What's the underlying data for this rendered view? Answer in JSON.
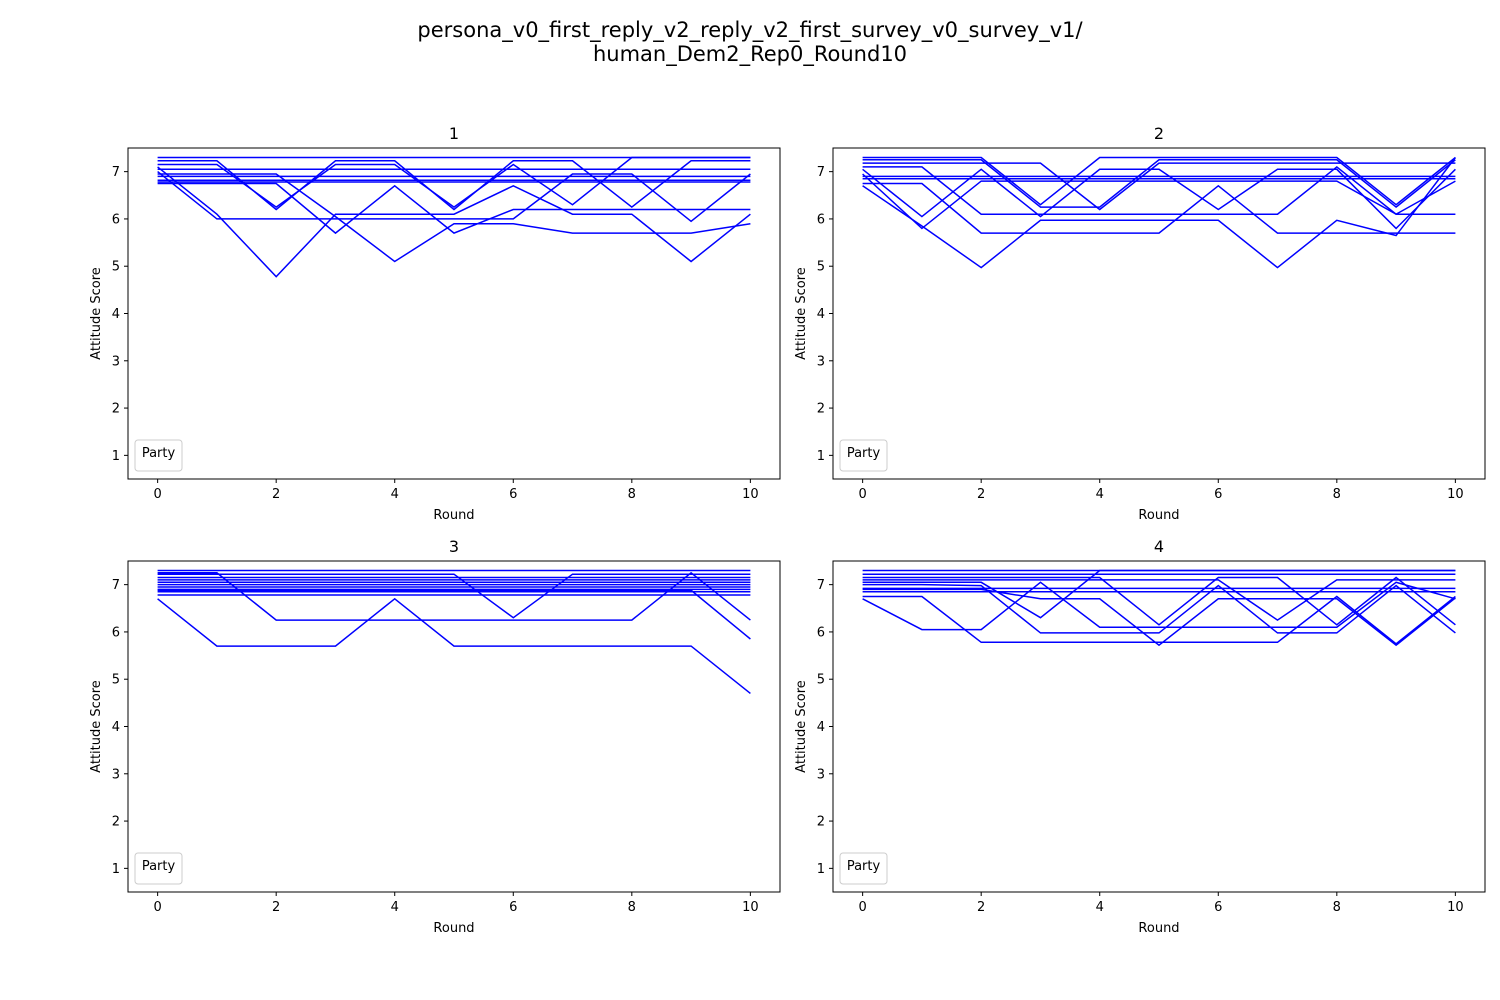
{
  "figure": {
    "title_line1": "persona_v0_first_reply_v2_reply_v2_first_survey_v0_survey_v1/",
    "title_line2": "human_Dem2_Rep0_Round10"
  },
  "colors": {
    "series": "#0000ff",
    "axis": "#000000",
    "legend_border": "#cccccc"
  },
  "chart_data": [
    {
      "type": "line",
      "title": "1",
      "xlabel": "Round",
      "ylabel": "Attitude Score",
      "xlim": [
        -0.5,
        10.5
      ],
      "ylim": [
        0.5,
        7.5
      ],
      "xticks": [
        0,
        2,
        4,
        6,
        8,
        10
      ],
      "yticks": [
        1,
        2,
        3,
        4,
        5,
        6,
        7
      ],
      "grid": false,
      "legend": {
        "title": "Party",
        "entries": [],
        "placement": "lower-left"
      },
      "x": [
        0,
        1,
        2,
        3,
        4,
        5,
        6,
        7,
        8,
        9,
        10
      ],
      "series": [
        {
          "values": [
            7.3,
            7.3,
            7.3,
            7.3,
            7.3,
            7.3,
            7.3,
            7.3,
            7.3,
            7.3,
            7.3
          ]
        },
        {
          "values": [
            7.23,
            7.23,
            6.2,
            7.23,
            7.23,
            6.2,
            7.23,
            7.23,
            6.25,
            7.23,
            7.23
          ]
        },
        {
          "values": [
            7.15,
            7.15,
            6.25,
            7.15,
            7.15,
            6.25,
            7.15,
            6.3,
            7.3,
            7.3,
            7.3
          ]
        },
        {
          "values": [
            7.05,
            7.05,
            7.05,
            7.05,
            7.05,
            7.05,
            7.05,
            7.05,
            7.05,
            7.05,
            7.05
          ]
        },
        {
          "values": [
            6.9,
            6.9,
            6.9,
            6.9,
            6.9,
            6.9,
            6.9,
            6.9,
            6.9,
            6.9,
            6.9
          ]
        },
        {
          "values": [
            6.82,
            6.82,
            6.82,
            6.82,
            6.82,
            6.82,
            6.82,
            6.82,
            6.82,
            6.82,
            6.82
          ]
        },
        {
          "values": [
            6.78,
            6.78,
            6.78,
            6.78,
            6.78,
            6.78,
            6.78,
            6.78,
            6.78,
            6.78,
            6.78
          ]
        },
        {
          "values": [
            7.0,
            6.0,
            6.0,
            6.0,
            6.0,
            6.0,
            6.0,
            6.95,
            6.95,
            5.95,
            6.95
          ]
        },
        {
          "values": [
            7.1,
            6.1,
            4.78,
            6.1,
            6.1,
            6.1,
            6.7,
            6.1,
            6.1,
            5.1,
            6.1
          ]
        },
        {
          "values": [
            6.75,
            6.75,
            6.75,
            5.7,
            6.7,
            5.7,
            6.2,
            6.2,
            6.2,
            6.2,
            6.2
          ]
        },
        {
          "values": [
            6.95,
            6.95,
            6.95,
            6.05,
            5.1,
            5.9,
            5.9,
            5.7,
            5.7,
            5.7,
            5.9
          ]
        }
      ]
    },
    {
      "type": "line",
      "title": "2",
      "xlabel": "Round",
      "ylabel": "Attitude Score",
      "xlim": [
        -0.5,
        10.5
      ],
      "ylim": [
        0.5,
        7.5
      ],
      "xticks": [
        0,
        2,
        4,
        6,
        8,
        10
      ],
      "yticks": [
        1,
        2,
        3,
        4,
        5,
        6,
        7
      ],
      "grid": false,
      "legend": {
        "title": "Party",
        "entries": [],
        "placement": "lower-left"
      },
      "x": [
        0,
        1,
        2,
        3,
        4,
        5,
        6,
        7,
        8,
        9,
        10
      ],
      "series": [
        {
          "values": [
            7.3,
            7.3,
            7.3,
            6.3,
            7.3,
            7.3,
            7.3,
            7.3,
            7.3,
            6.3,
            7.3
          ]
        },
        {
          "values": [
            7.25,
            7.25,
            7.25,
            6.25,
            6.25,
            7.25,
            7.25,
            7.25,
            7.25,
            6.25,
            7.25
          ]
        },
        {
          "values": [
            7.18,
            7.18,
            7.18,
            7.18,
            6.2,
            7.18,
            7.18,
            7.18,
            7.18,
            7.18,
            7.18
          ]
        },
        {
          "values": [
            7.1,
            7.1,
            6.1,
            6.1,
            6.1,
            6.1,
            6.1,
            6.1,
            7.1,
            6.1,
            6.1
          ]
        },
        {
          "values": [
            6.9,
            6.9,
            6.9,
            6.9,
            6.9,
            6.9,
            6.9,
            6.9,
            6.9,
            6.9,
            6.9
          ]
        },
        {
          "values": [
            6.85,
            6.85,
            6.85,
            6.85,
            6.85,
            6.85,
            6.85,
            6.85,
            6.85,
            6.85,
            6.85
          ]
        },
        {
          "values": [
            7.05,
            6.05,
            7.05,
            6.05,
            7.05,
            7.05,
            6.2,
            7.05,
            7.05,
            5.8,
            7.05
          ]
        },
        {
          "values": [
            6.95,
            5.8,
            6.8,
            6.8,
            6.8,
            6.8,
            6.8,
            6.8,
            6.8,
            6.1,
            6.8
          ]
        },
        {
          "values": [
            6.75,
            6.75,
            5.7,
            5.7,
            5.7,
            5.7,
            6.7,
            5.7,
            5.7,
            5.7,
            5.7
          ]
        },
        {
          "values": [
            6.7,
            5.85,
            4.97,
            5.97,
            5.97,
            5.97,
            5.97,
            4.97,
            5.97,
            5.65,
            7.3
          ]
        }
      ]
    },
    {
      "type": "line",
      "title": "3",
      "xlabel": "Round",
      "ylabel": "Attitude Score",
      "xlim": [
        -0.5,
        10.5
      ],
      "ylim": [
        0.5,
        7.5
      ],
      "xticks": [
        0,
        2,
        4,
        6,
        8,
        10
      ],
      "yticks": [
        1,
        2,
        3,
        4,
        5,
        6,
        7
      ],
      "grid": false,
      "legend": {
        "title": "Party",
        "entries": [],
        "placement": "lower-left"
      },
      "x": [
        0,
        1,
        2,
        3,
        4,
        5,
        6,
        7,
        8,
        9,
        10
      ],
      "series": [
        {
          "values": [
            7.3,
            7.3,
            7.3,
            7.3,
            7.3,
            7.3,
            7.3,
            7.3,
            7.3,
            7.3,
            7.3
          ]
        },
        {
          "values": [
            7.22,
            7.22,
            7.22,
            7.22,
            7.22,
            7.22,
            6.3,
            7.22,
            7.22,
            7.22,
            7.22
          ]
        },
        {
          "values": [
            7.15,
            7.15,
            7.15,
            7.15,
            7.15,
            7.15,
            7.15,
            7.15,
            7.15,
            7.15,
            7.15
          ]
        },
        {
          "values": [
            7.1,
            7.1,
            7.1,
            7.1,
            7.1,
            7.1,
            7.1,
            7.1,
            7.1,
            7.1,
            7.1
          ]
        },
        {
          "values": [
            7.05,
            7.05,
            7.05,
            7.05,
            7.05,
            7.05,
            7.05,
            7.05,
            7.05,
            7.05,
            7.05
          ]
        },
        {
          "values": [
            7.0,
            7.0,
            7.0,
            7.0,
            7.0,
            7.0,
            7.0,
            7.0,
            7.0,
            7.0,
            7.0
          ]
        },
        {
          "values": [
            6.95,
            6.95,
            6.95,
            6.95,
            6.95,
            6.95,
            6.95,
            6.95,
            6.95,
            6.95,
            6.95
          ]
        },
        {
          "values": [
            6.9,
            6.9,
            6.9,
            6.9,
            6.9,
            6.9,
            6.9,
            6.9,
            6.9,
            6.9,
            6.9
          ]
        },
        {
          "values": [
            6.85,
            6.85,
            6.85,
            6.85,
            6.85,
            6.85,
            6.85,
            6.85,
            6.85,
            6.85,
            6.85
          ]
        },
        {
          "values": [
            6.78,
            6.78,
            6.78,
            6.78,
            6.78,
            6.78,
            6.78,
            6.78,
            6.78,
            6.78,
            6.78
          ]
        },
        {
          "values": [
            7.25,
            7.25,
            6.25,
            6.25,
            6.25,
            6.25,
            6.25,
            6.25,
            6.25,
            7.25,
            6.25
          ]
        },
        {
          "values": [
            6.88,
            6.88,
            6.88,
            6.88,
            6.88,
            6.88,
            6.88,
            6.88,
            6.88,
            6.88,
            5.85
          ]
        },
        {
          "values": [
            6.7,
            5.7,
            5.7,
            5.7,
            6.7,
            5.7,
            5.7,
            5.7,
            5.7,
            5.7,
            4.7
          ]
        }
      ]
    },
    {
      "type": "line",
      "title": "4",
      "xlabel": "Round",
      "ylabel": "Attitude Score",
      "xlim": [
        -0.5,
        10.5
      ],
      "ylim": [
        0.5,
        7.5
      ],
      "xticks": [
        0,
        2,
        4,
        6,
        8,
        10
      ],
      "yticks": [
        1,
        2,
        3,
        4,
        5,
        6,
        7
      ],
      "grid": false,
      "legend": {
        "title": "Party",
        "entries": [],
        "placement": "lower-left"
      },
      "x": [
        0,
        1,
        2,
        3,
        4,
        5,
        6,
        7,
        8,
        9,
        10
      ],
      "series": [
        {
          "values": [
            7.3,
            7.3,
            7.3,
            7.3,
            7.3,
            7.3,
            7.3,
            7.3,
            7.3,
            7.3,
            7.3
          ]
        },
        {
          "values": [
            7.22,
            7.22,
            7.22,
            7.22,
            7.22,
            7.22,
            7.22,
            7.22,
            7.22,
            7.22,
            7.22
          ]
        },
        {
          "values": [
            7.15,
            7.15,
            7.15,
            7.15,
            7.15,
            6.15,
            7.15,
            7.15,
            6.15,
            7.15,
            6.15
          ]
        },
        {
          "values": [
            7.1,
            7.1,
            7.1,
            7.1,
            7.1,
            7.1,
            7.1,
            6.25,
            7.1,
            7.1,
            7.1
          ]
        },
        {
          "values": [
            7.05,
            7.05,
            7.05,
            6.3,
            7.3,
            7.3,
            7.3,
            7.3,
            7.3,
            7.3,
            7.3
          ]
        },
        {
          "values": [
            6.92,
            6.92,
            6.92,
            6.92,
            6.92,
            6.92,
            6.92,
            6.92,
            6.92,
            6.92,
            6.92
          ]
        },
        {
          "values": [
            6.85,
            6.85,
            6.85,
            6.85,
            6.85,
            6.85,
            6.85,
            6.85,
            6.85,
            6.85,
            6.85
          ]
        },
        {
          "values": [
            7.0,
            7.0,
            6.98,
            5.98,
            5.98,
            5.98,
            6.98,
            5.98,
            5.98,
            6.98,
            5.98
          ]
        },
        {
          "values": [
            6.75,
            6.75,
            5.78,
            5.78,
            5.78,
            5.78,
            5.78,
            5.78,
            6.75,
            5.75,
            6.75
          ]
        },
        {
          "values": [
            6.7,
            6.05,
            6.05,
            7.05,
            6.1,
            6.1,
            6.1,
            6.1,
            6.1,
            7.05,
            6.7
          ]
        },
        {
          "values": [
            6.9,
            6.9,
            6.9,
            6.7,
            6.7,
            5.72,
            6.7,
            6.7,
            6.7,
            5.72,
            6.72
          ]
        }
      ]
    }
  ]
}
